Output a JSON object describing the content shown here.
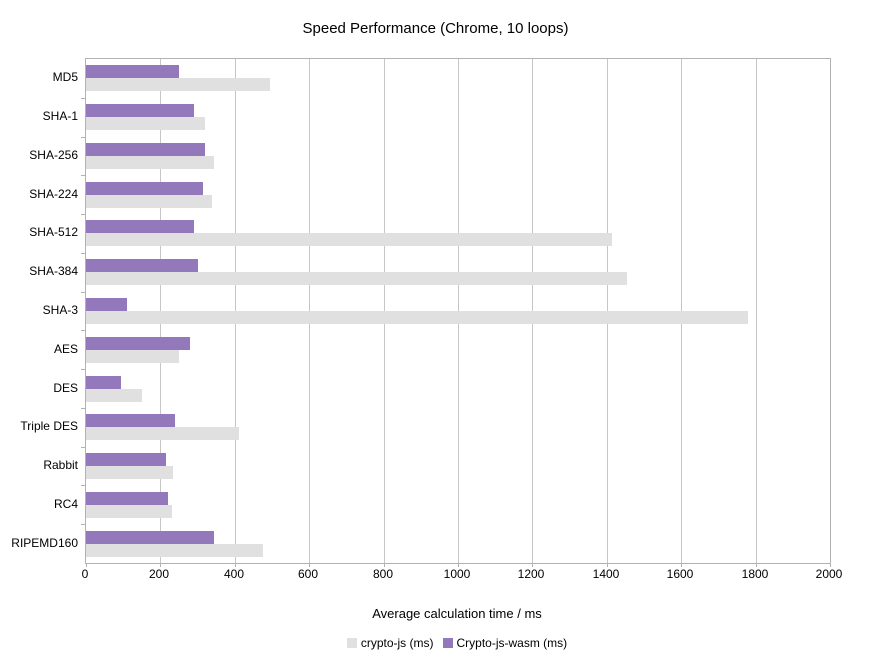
{
  "chart_data": {
    "type": "bar",
    "orientation": "horizontal",
    "title": "Speed Performance (Chrome, 10 loops)",
    "xlabel": "Average calculation time / ms",
    "ylabel": "",
    "xlim": [
      0,
      2000
    ],
    "x_ticks": [
      0,
      200,
      400,
      600,
      800,
      1000,
      1200,
      1400,
      1600,
      1800,
      2000
    ],
    "grid": true,
    "legend_position": "bottom",
    "categories": [
      "MD5",
      "SHA-1",
      "SHA-256",
      "SHA-224",
      "SHA-512",
      "SHA-384",
      "SHA-3",
      "AES",
      "DES",
      "Triple DES",
      "Rabbit",
      "RC4",
      "RIPEMD160"
    ],
    "series": [
      {
        "name": "crypto-js (ms)",
        "color": "#e0e0e0",
        "values": [
          495,
          320,
          345,
          340,
          1415,
          1455,
          1780,
          250,
          150,
          410,
          235,
          230,
          475
        ]
      },
      {
        "name": "Crypto-js-wasm (ms)",
        "color": "#9379bc",
        "values": [
          250,
          290,
          320,
          315,
          290,
          300,
          110,
          280,
          95,
          240,
          215,
          220,
          345
        ]
      }
    ]
  },
  "colors": {
    "gridline": "#c6c6c6",
    "border": "#b2b2b2",
    "background": "#ffffff",
    "text": "#000000"
  }
}
